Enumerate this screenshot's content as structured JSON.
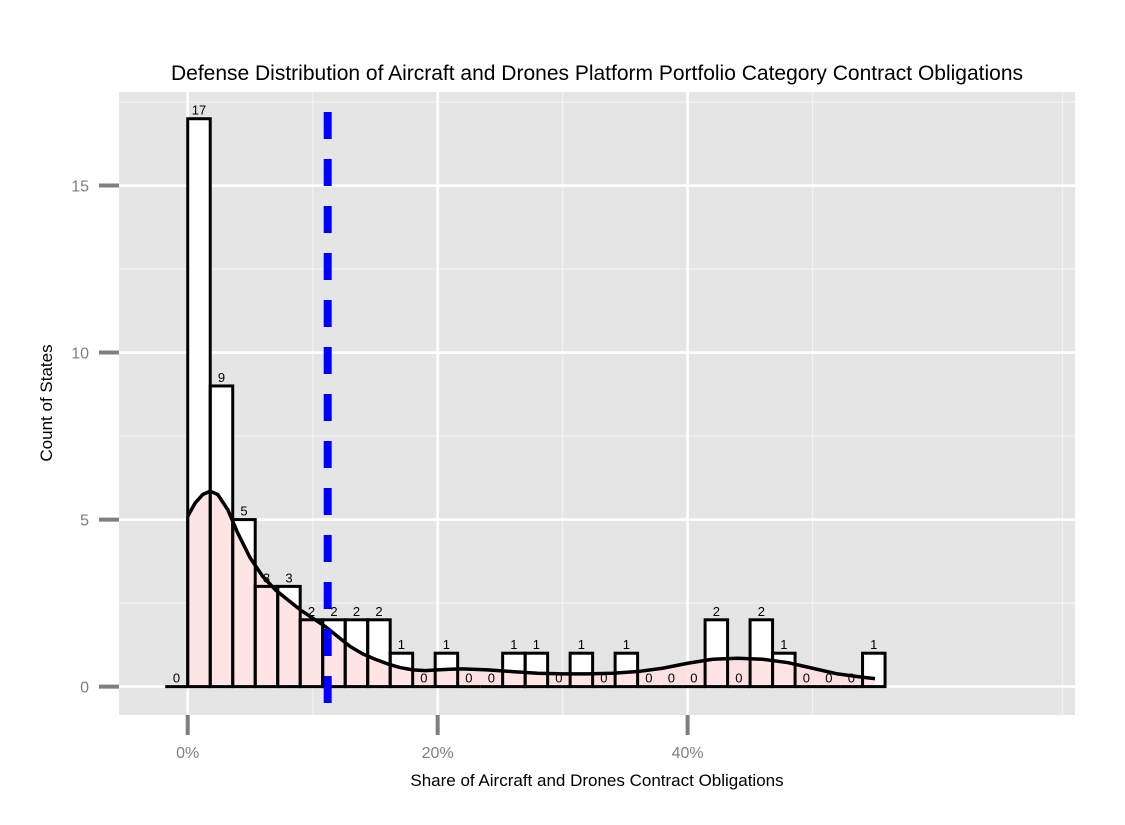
{
  "chart_data": {
    "type": "histogram",
    "title": "Defense Distribution of Aircraft and Drones Platform Portfolio Category Contract Obligations",
    "xlabel": "Share of Aircraft and Drones Contract Obligations",
    "ylabel": "Count of States",
    "xlim": [
      -0.055,
      0.71
    ],
    "ylim": [
      -0.85,
      17.8
    ],
    "x_ticks": [
      {
        "value": 0.0,
        "label": "0%"
      },
      {
        "value": 0.2,
        "label": "20%"
      },
      {
        "value": 0.4,
        "label": "40%"
      }
    ],
    "y_ticks": [
      {
        "value": 0,
        "label": "0"
      },
      {
        "value": 5,
        "label": "5"
      },
      {
        "value": 10,
        "label": "10"
      },
      {
        "value": 15,
        "label": "15"
      }
    ],
    "bin_width": 0.018,
    "bin_start": 0.0,
    "counts": [
      17,
      9,
      5,
      3,
      3,
      2,
      2,
      2,
      2,
      1,
      0,
      1,
      0,
      0,
      1,
      1,
      0,
      1,
      0,
      1,
      0,
      0,
      0,
      2,
      0,
      2,
      1,
      0,
      0,
      0,
      1
    ],
    "count_labels": [
      "17",
      "9",
      "5",
      "3",
      "3",
      "2",
      "2",
      "2",
      "2",
      "1",
      "0",
      "1",
      "0",
      "0",
      "1",
      "1",
      "0",
      "1",
      "0",
      "1",
      "0",
      "0",
      "0",
      "2",
      "0",
      "2",
      "1",
      "0",
      "0",
      "0",
      "1"
    ],
    "outside_labels": [
      {
        "x": -0.009,
        "y": 0,
        "label": "0"
      }
    ],
    "density_curve": {
      "x": [
        0.0,
        0.006,
        0.012,
        0.018,
        0.024,
        0.032,
        0.04,
        0.05,
        0.06,
        0.07,
        0.08,
        0.09,
        0.1,
        0.11,
        0.12,
        0.13,
        0.14,
        0.15,
        0.16,
        0.17,
        0.18,
        0.19,
        0.2,
        0.21,
        0.22,
        0.24,
        0.26,
        0.28,
        0.3,
        0.32,
        0.34,
        0.36,
        0.38,
        0.4,
        0.42,
        0.44,
        0.46,
        0.48,
        0.5,
        0.52,
        0.54,
        0.55
      ],
      "y": [
        5.1,
        5.5,
        5.75,
        5.85,
        5.75,
        5.3,
        4.6,
        3.85,
        3.3,
        2.9,
        2.6,
        2.3,
        2.05,
        1.8,
        1.5,
        1.2,
        0.98,
        0.82,
        0.68,
        0.57,
        0.5,
        0.48,
        0.5,
        0.52,
        0.53,
        0.5,
        0.45,
        0.4,
        0.38,
        0.38,
        0.4,
        0.45,
        0.55,
        0.7,
        0.82,
        0.85,
        0.82,
        0.72,
        0.55,
        0.38,
        0.28,
        0.24
      ]
    },
    "reference_line": {
      "x": 0.112,
      "style": "dashed"
    },
    "colors": {
      "panel_background": "#e5e5e5",
      "grid_major": "#ffffff",
      "grid_minor": "#f2f2f2",
      "bar_fill": "#ffffff",
      "bar_stroke": "#000000",
      "density_fill": "#ffdfe2",
      "density_stroke": "#000000",
      "reference_line": "#0000ff",
      "tick_text": "#7f7f7f",
      "tick_mark": "#7f7f7f"
    }
  }
}
